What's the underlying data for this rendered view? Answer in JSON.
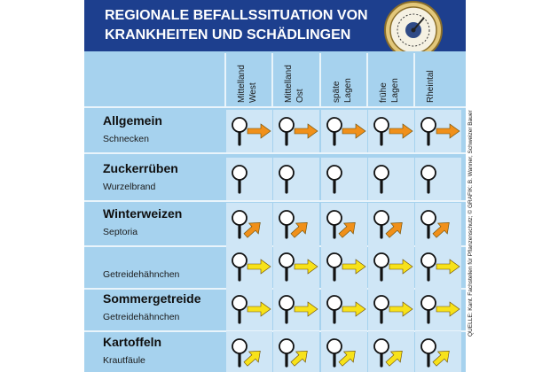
{
  "header": {
    "title_line1": "REGIONALE BEFALLSSITUATION VON",
    "title_line2": "KRANKHEITEN UND SCHÄDLINGEN"
  },
  "columns": [
    {
      "line1": "Mittelland",
      "line2": "West"
    },
    {
      "line1": "Mittelland",
      "line2": "Ost"
    },
    {
      "line1": "späte",
      "line2": "Lagen"
    },
    {
      "line1": "frühe",
      "line2": "Lagen"
    },
    {
      "line1": "Rheintal",
      "line2": ""
    }
  ],
  "rows": [
    {
      "crop": "Allgemein",
      "pest": "Schnecken",
      "arrows": [
        "right-orange",
        "right-orange",
        "right-orange",
        "right-orange",
        "right-orange"
      ]
    },
    {
      "crop": "Zuckerrüben",
      "pest": "Wurzelbrand",
      "arrows": [
        "none",
        "none",
        "none",
        "none",
        "none"
      ]
    },
    {
      "crop": "Winterweizen",
      "pest": "Septoria",
      "arrows": [
        "up-orange",
        "up-orange",
        "up-orange",
        "up-orange",
        "up-orange"
      ]
    },
    {
      "crop": "",
      "pest": "Getreidehähnchen",
      "arrows": [
        "right-yellow",
        "right-yellow",
        "right-yellow",
        "right-yellow",
        "right-yellow"
      ]
    },
    {
      "crop": "Sommergetreide",
      "pest": "Getreidehähnchen",
      "arrows": [
        "right-yellow",
        "right-yellow",
        "right-yellow",
        "right-yellow",
        "right-yellow"
      ]
    },
    {
      "crop": "Kartoffeln",
      "pest": "Krautfäule",
      "arrows": [
        "up-yellow",
        "up-yellow",
        "up-yellow",
        "up-yellow",
        "up-yellow"
      ]
    }
  ],
  "credit": "QUELLE: Kant. Fachstellen für Pflanzenschutz;  © GRAFIK: B. Wanner, Schweizer Bauer",
  "colors": {
    "header_bg": "#1d3f8e",
    "grid_bg": "#a6d2ee",
    "cell_bg": "#cfe6f6",
    "arrow_orange": "#f0901a",
    "arrow_yellow": "#f7e21a"
  },
  "icons": {
    "barometer": "barometer-icon",
    "magnifier": "magnifier-icon"
  }
}
